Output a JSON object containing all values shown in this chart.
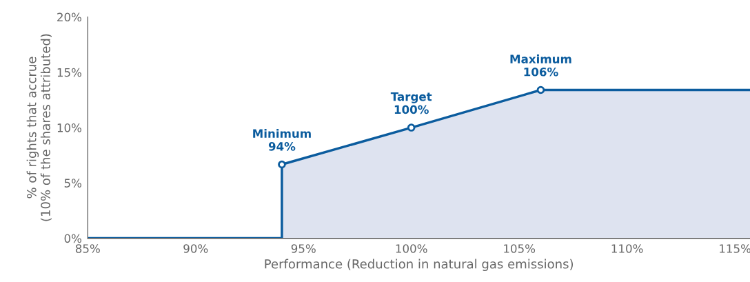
{
  "chart_data": {
    "type": "line",
    "xlabel": "Performance (Reduction in natural gas emissions)",
    "ylabel": "% of rights that accrue\n(10% of the shares attributed)",
    "xlim": [
      85,
      115.7
    ],
    "ylim": [
      0,
      20
    ],
    "xticks": [
      {
        "value": 85,
        "label": "85%"
      },
      {
        "value": 90,
        "label": "90%"
      },
      {
        "value": 95,
        "label": "95%"
      },
      {
        "value": 100,
        "label": "100%"
      },
      {
        "value": 105,
        "label": "105%"
      },
      {
        "value": 110,
        "label": "110%"
      },
      {
        "value": 115,
        "label": "115%"
      }
    ],
    "yticks": [
      {
        "value": 0,
        "label": "0%"
      },
      {
        "value": 5,
        "label": "5%"
      },
      {
        "value": 10,
        "label": "10%"
      },
      {
        "value": 15,
        "label": "15%"
      },
      {
        "value": 20,
        "label": "20%"
      }
    ],
    "grid": false,
    "legend": false,
    "series": [
      {
        "type": "area",
        "color": "#0b5c9e",
        "x": [
          85,
          94,
          94,
          100,
          106,
          115.7
        ],
        "values": [
          0,
          0,
          6.67,
          10,
          13.4,
          13.4
        ]
      },
      {
        "type": "scatter",
        "marker": "circle",
        "color": "#0b5c9e",
        "x": [
          94,
          100,
          106
        ],
        "values": [
          6.67,
          10,
          13.4
        ]
      }
    ],
    "annotations": [
      {
        "text": "Minimum\n94%",
        "x": 94,
        "y": 6.67
      },
      {
        "text": "Target\n100%",
        "x": 100,
        "y": 10
      },
      {
        "text": "Maximum\n106%",
        "x": 106,
        "y": 13.4
      }
    ]
  }
}
